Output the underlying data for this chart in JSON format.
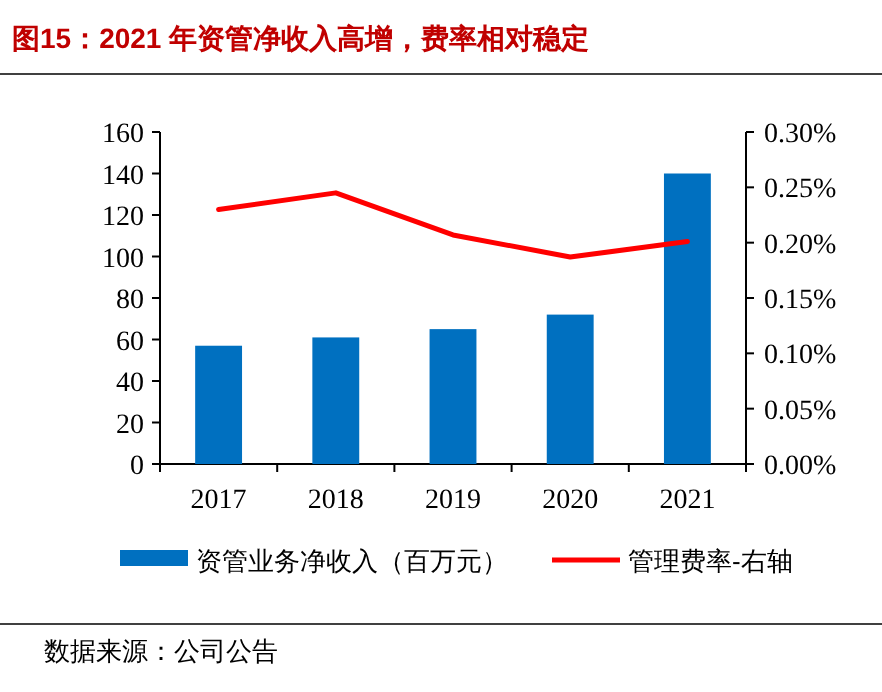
{
  "chart_data": {
    "type": "bar",
    "title": "图15：2021 年资管净收入高增，费率相对稳定",
    "categories": [
      "2017",
      "2018",
      "2019",
      "2020",
      "2021"
    ],
    "series": [
      {
        "name": "资管业务净收入（百万元）",
        "color": "#0070c0",
        "values": [
          57,
          61,
          65,
          72,
          140
        ]
      },
      {
        "name": "管理费率-右轴",
        "type": "line",
        "axis": "y2",
        "color": "#ff0000",
        "values": [
          0.23,
          0.245,
          0.207,
          0.187,
          0.201
        ]
      }
    ],
    "ylim": [
      0,
      160
    ],
    "yticks": [
      0,
      20,
      40,
      60,
      80,
      100,
      120,
      140,
      160
    ],
    "y2lim": [
      0,
      0.3
    ],
    "y2ticks": [
      {
        "value": 0,
        "label": "0.00%"
      },
      {
        "value": 0.05,
        "label": "0.05%"
      },
      {
        "value": 0.1,
        "label": "0.10%"
      },
      {
        "value": 0.15,
        "label": "0.15%"
      },
      {
        "value": 0.2,
        "label": "0.20%"
      },
      {
        "value": 0.25,
        "label": "0.25%"
      },
      {
        "value": 0.3,
        "label": "0.30%"
      }
    ],
    "grid": false,
    "legend": "bottom",
    "marker": "none",
    "line_style": "solid",
    "annotations": [
      "数据来源：公司公告"
    ]
  }
}
